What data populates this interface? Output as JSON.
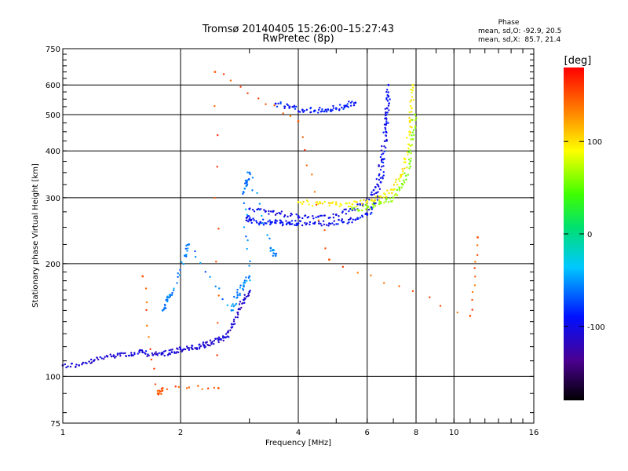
{
  "chart_data": {
    "type": "scatter",
    "title": "Tromsø 20140405 15:26:00–15:27:43",
    "subtitle": "RwPretec (8p)",
    "xlabel": "Frequency [MHz]",
    "ylabel": "Stationary phase Virtual Height [km]",
    "x_scale": "log",
    "y_scale": "log",
    "xlim": [
      1,
      16
    ],
    "ylim": [
      75,
      750
    ],
    "x_ticks": [
      1,
      2,
      4,
      6,
      8,
      10,
      16
    ],
    "y_ticks": [
      75,
      100,
      200,
      300,
      400,
      500,
      600,
      750
    ],
    "grid": true,
    "stats": {
      "heading": "Phase",
      "line_o": "mean, sd,O: -92.9, 20.5",
      "line_x": "mean, sd,X:  85.7, 21.4"
    },
    "colorbar": {
      "label": "[deg]",
      "range": [
        -180,
        180
      ],
      "ticks": [
        {
          "value": 100,
          "label": "100"
        },
        {
          "value": 0,
          "label": "0"
        },
        {
          "value": -100,
          "label": "-100"
        }
      ]
    },
    "series": [
      {
        "phase": -110,
        "points": [
          [
            1.0,
            107
          ],
          [
            1.1,
            107
          ],
          [
            1.2,
            110
          ],
          [
            1.3,
            113
          ],
          [
            1.4,
            115
          ],
          [
            1.5,
            114
          ],
          [
            1.6,
            116
          ],
          [
            1.7,
            114
          ],
          [
            1.8,
            115
          ],
          [
            1.9,
            116
          ],
          [
            2.0,
            118
          ],
          [
            2.1,
            119
          ],
          [
            2.2,
            119
          ],
          [
            2.3,
            121
          ],
          [
            2.4,
            123
          ],
          [
            2.5,
            125
          ],
          [
            2.6,
            127
          ],
          [
            2.7,
            135
          ],
          [
            2.8,
            148
          ],
          [
            2.9,
            160
          ],
          [
            3.0,
            168
          ]
        ]
      },
      {
        "phase": -95,
        "points": [
          [
            2.95,
            265
          ],
          [
            3.0,
            262
          ],
          [
            3.2,
            258
          ],
          [
            3.4,
            258
          ],
          [
            3.6,
            257
          ],
          [
            3.8,
            256
          ],
          [
            4.0,
            256
          ],
          [
            4.4,
            256
          ],
          [
            4.8,
            256
          ],
          [
            5.2,
            258
          ],
          [
            5.6,
            262
          ],
          [
            6.0,
            270
          ],
          [
            6.3,
            290
          ],
          [
            6.5,
            330
          ],
          [
            6.6,
            380
          ],
          [
            6.7,
            450
          ],
          [
            6.75,
            520
          ],
          [
            6.8,
            600
          ]
        ]
      },
      {
        "phase": -100,
        "points": [
          [
            3.0,
            280
          ],
          [
            3.3,
            276
          ],
          [
            3.6,
            272
          ],
          [
            4.0,
            268
          ],
          [
            4.5,
            267
          ],
          [
            5.0,
            270
          ],
          [
            5.5,
            278
          ],
          [
            6.0,
            292
          ],
          [
            6.3,
            320
          ],
          [
            6.55,
            380
          ],
          [
            6.7,
            470
          ],
          [
            6.8,
            560
          ]
        ]
      },
      {
        "phase": -90,
        "points": [
          [
            3.5,
            535
          ],
          [
            3.8,
            525
          ],
          [
            4.1,
            515
          ],
          [
            4.4,
            512
          ],
          [
            4.7,
            515
          ],
          [
            5.0,
            520
          ],
          [
            5.3,
            528
          ],
          [
            5.6,
            538
          ]
        ]
      },
      {
        "phase": 95,
        "points": [
          [
            4.0,
            292
          ],
          [
            4.5,
            289
          ],
          [
            5.0,
            288
          ],
          [
            5.5,
            288
          ],
          [
            6.0,
            292
          ],
          [
            6.5,
            302
          ],
          [
            7.0,
            315
          ],
          [
            7.3,
            340
          ],
          [
            7.5,
            380
          ],
          [
            7.7,
            450
          ],
          [
            7.8,
            520
          ],
          [
            7.85,
            600
          ]
        ]
      },
      {
        "phase": 60,
        "points": [
          [
            5.5,
            280
          ],
          [
            6.0,
            283
          ],
          [
            6.5,
            290
          ],
          [
            7.0,
            300
          ],
          [
            7.4,
            325
          ],
          [
            7.7,
            370
          ],
          [
            7.85,
            430
          ],
          [
            7.95,
            500
          ]
        ]
      },
      {
        "phase": -60,
        "points": [
          [
            1.8,
            150
          ],
          [
            1.85,
            160
          ],
          [
            1.9,
            165
          ],
          [
            2.05,
            210
          ],
          [
            2.1,
            225
          ],
          [
            2.7,
            150
          ],
          [
            2.8,
            165
          ],
          [
            2.9,
            175
          ],
          [
            3.0,
            185
          ],
          [
            2.9,
            310
          ],
          [
            2.95,
            330
          ],
          [
            3.0,
            350
          ],
          [
            3.4,
            220
          ],
          [
            3.5,
            210
          ]
        ]
      },
      {
        "phase": 150,
        "points": [
          [
            1.6,
            185
          ],
          [
            1.75,
            90
          ],
          [
            1.8,
            93
          ],
          [
            2.5,
            93
          ],
          [
            2.45,
            650
          ],
          [
            4.0,
            480
          ],
          [
            4.8,
            205
          ],
          [
            11.0,
            145
          ],
          [
            11.5,
            235
          ]
        ]
      }
    ]
  }
}
